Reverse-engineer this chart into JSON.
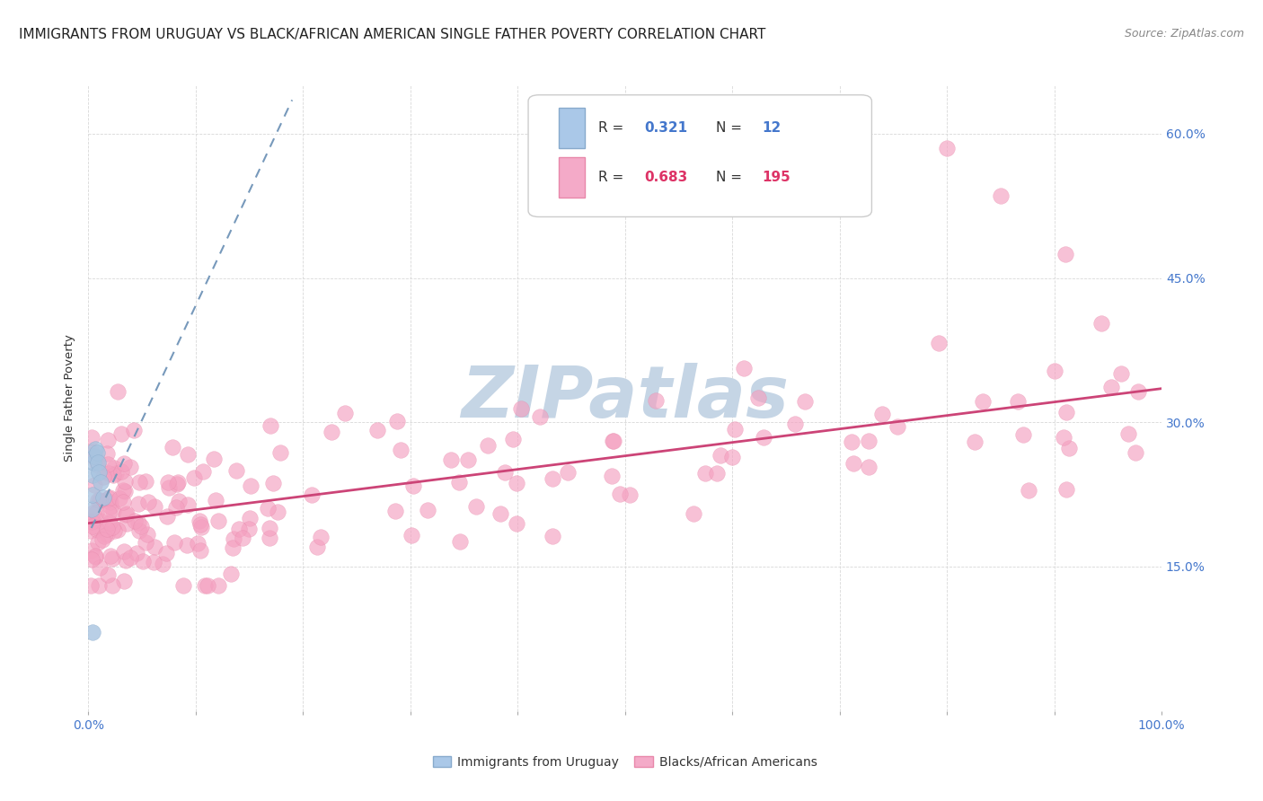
{
  "title": "IMMIGRANTS FROM URUGUAY VS BLACK/AFRICAN AMERICAN SINGLE FATHER POVERTY CORRELATION CHART",
  "source": "Source: ZipAtlas.com",
  "ylabel": "Single Father Poverty",
  "watermark": "ZIPatlas",
  "legend_blue_R": "0.321",
  "legend_blue_N": "12",
  "legend_pink_R": "0.683",
  "legend_pink_N": "195",
  "legend_label_blue": "Immigrants from Uruguay",
  "legend_label_pink": "Blacks/African Americans",
  "xlim": [
    0.0,
    1.0
  ],
  "ylim": [
    0.0,
    0.65
  ],
  "xtick_positions": [
    0.0,
    0.1,
    0.2,
    0.3,
    0.4,
    0.5,
    0.6,
    0.7,
    0.8,
    0.9,
    1.0
  ],
  "xticklabels": [
    "0.0%",
    "",
    "",
    "",
    "",
    "",
    "",
    "",
    "",
    "",
    "100.0%"
  ],
  "ytick_positions": [
    0.0,
    0.15,
    0.3,
    0.45,
    0.6
  ],
  "yticklabels": [
    "",
    "15.0%",
    "30.0%",
    "45.0%",
    "60.0%"
  ],
  "blue_scatter_x": [
    0.003,
    0.004,
    0.004,
    0.005,
    0.006,
    0.007,
    0.008,
    0.009,
    0.01,
    0.012,
    0.014,
    0.004
  ],
  "blue_scatter_y": [
    0.21,
    0.225,
    0.245,
    0.258,
    0.265,
    0.272,
    0.268,
    0.258,
    0.248,
    0.238,
    0.222,
    0.082
  ],
  "blue_line_x": [
    0.003,
    0.19
  ],
  "blue_line_y": [
    0.19,
    0.635
  ],
  "pink_line_x": [
    0.0,
    1.0
  ],
  "pink_line_y": [
    0.195,
    0.335
  ],
  "background_color": "#ffffff",
  "grid_color": "#d8d8d8",
  "blue_scatter_color": "#a8c4e0",
  "blue_scatter_edge": "#88aacc",
  "pink_scatter_color": "#f4a0c0",
  "pink_scatter_edge": "#e888aa",
  "blue_line_color": "#7799bb",
  "pink_line_color": "#cc4477",
  "tick_color": "#4477cc",
  "title_fontsize": 11,
  "axis_label_fontsize": 9.5,
  "tick_fontsize": 10,
  "watermark_color": "#c5d5e5",
  "watermark_fontsize": 58,
  "legend_text_color": "#4477cc",
  "legend_label_color": "#333333"
}
